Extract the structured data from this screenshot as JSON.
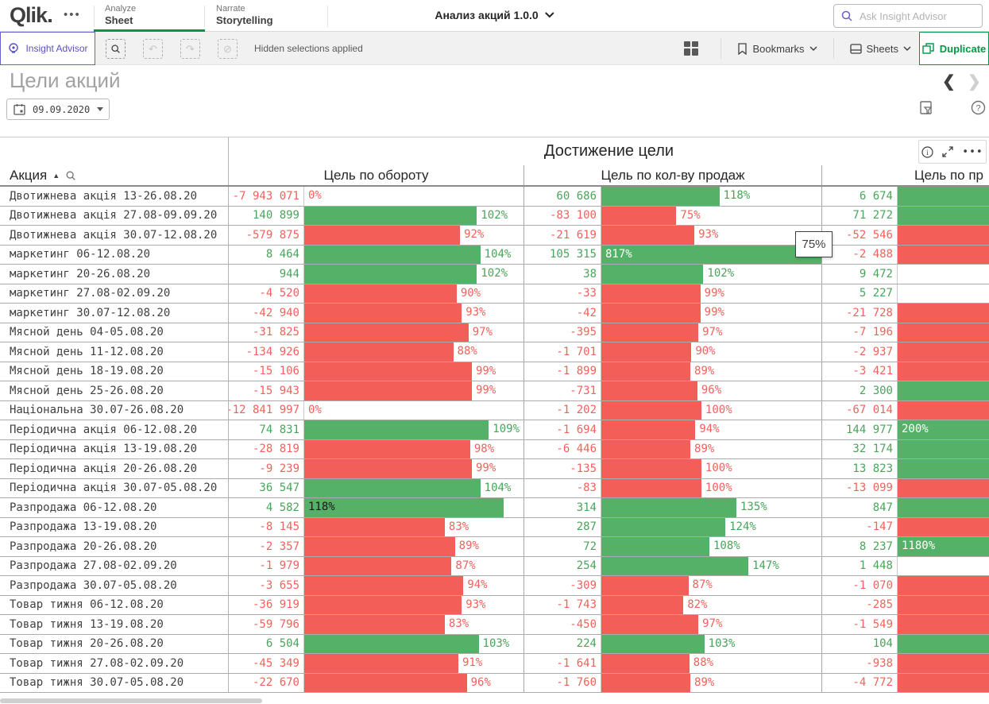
{
  "topbar": {
    "logo": "Qlik",
    "tabs": [
      {
        "top": "Analyze",
        "label": "Sheet"
      },
      {
        "top": "Narrate",
        "label": "Storytelling"
      }
    ],
    "app_title": "Анализ акций 1.0.0",
    "search_placeholder": "Ask Insight Advisor"
  },
  "toolbar": {
    "insight_advisor": "Insight Advisor",
    "hidden_selections": "Hidden selections applied",
    "bookmarks": "Bookmarks",
    "sheets": "Sheets",
    "duplicate": "Duplicate"
  },
  "sheet": {
    "title": "Цели акций",
    "date_value": "09.09.2020"
  },
  "table": {
    "group_header": "Достижение цели",
    "dim_header": "Акция",
    "col1_header": "Цель по обороту",
    "col2_header": "Цель по кол-ву продаж",
    "col3_header_visible": "Цель по пр",
    "tooltip": "75%",
    "colors": {
      "bar_green": "#55b167",
      "bar_red": "#f35f58",
      "text_green": "#4aa45a",
      "text_red": "#f2625c"
    },
    "scales": {
      "c1_max": 129.5,
      "c2_max": 220
    },
    "rows": [
      {
        "name": "Двотижнева акція 13-26.08.20",
        "c1": {
          "v": "-7 943 071",
          "pct": 0
        },
        "c2": {
          "v": "60 686",
          "pct": 118
        },
        "c3": {
          "v": "6 674",
          "bar": true,
          "label": ""
        }
      },
      {
        "name": "Двотижнева акція 27.08-09.09.20",
        "c1": {
          "v": "140 899",
          "pct": 102
        },
        "c2": {
          "v": "-83 100",
          "pct": 75
        },
        "c3": {
          "v": "71 272",
          "bar": true,
          "label": ""
        }
      },
      {
        "name": "Двотижнева акція 30.07-12.08.20",
        "c1": {
          "v": "-579 875",
          "pct": 92
        },
        "c2": {
          "v": "-21 619",
          "pct": 93
        },
        "c3": {
          "v": "-52 546",
          "bar": true,
          "label": ""
        }
      },
      {
        "name": "маркетинг 06-12.08.20",
        "c1": {
          "v": "8 464",
          "pct": 104
        },
        "c2": {
          "v": "105 315",
          "pct": 817
        },
        "c3": {
          "v": "-2 488",
          "bar": true,
          "label": ""
        }
      },
      {
        "name": "маркетинг 20-26.08.20",
        "c1": {
          "v": "944",
          "pct": 102
        },
        "c2": {
          "v": "38",
          "pct": 102
        },
        "c3": {
          "v": "9 472",
          "bar": false,
          "label": ""
        }
      },
      {
        "name": "маркетинг 27.08-02.09.20",
        "c1": {
          "v": "-4 520",
          "pct": 90
        },
        "c2": {
          "v": "-33",
          "pct": 99
        },
        "c3": {
          "v": "5 227",
          "bar": false,
          "label": ""
        }
      },
      {
        "name": "маркетинг 30.07-12.08.20",
        "c1": {
          "v": "-42 940",
          "pct": 93
        },
        "c2": {
          "v": "-42",
          "pct": 99
        },
        "c3": {
          "v": "-21 728",
          "bar": true,
          "label": ""
        }
      },
      {
        "name": "Мясной день 04-05.08.20",
        "c1": {
          "v": "-31 825",
          "pct": 97
        },
        "c2": {
          "v": "-395",
          "pct": 97
        },
        "c3": {
          "v": "-7 196",
          "bar": true,
          "label": ""
        }
      },
      {
        "name": "Мясной день 11-12.08.20",
        "c1": {
          "v": "-134 926",
          "pct": 88
        },
        "c2": {
          "v": "-1 701",
          "pct": 90
        },
        "c3": {
          "v": "-2 937",
          "bar": true,
          "label": ""
        }
      },
      {
        "name": "Мясной день 18-19.08.20",
        "c1": {
          "v": "-15 106",
          "pct": 99
        },
        "c2": {
          "v": "-1 899",
          "pct": 89
        },
        "c3": {
          "v": "-3 421",
          "bar": true,
          "label": ""
        }
      },
      {
        "name": "Мясной день 25-26.08.20",
        "c1": {
          "v": "-15 943",
          "pct": 99
        },
        "c2": {
          "v": "-731",
          "pct": 96
        },
        "c3": {
          "v": "2 300",
          "bar": true,
          "label": ""
        }
      },
      {
        "name": "Національна 30.07-26.08.20",
        "c1": {
          "v": "-12 841 997",
          "pct": 0
        },
        "c2": {
          "v": "-1 202",
          "pct": 100
        },
        "c3": {
          "v": "-67 014",
          "bar": true,
          "label": ""
        }
      },
      {
        "name": "Періодична акція 06-12.08.20",
        "c1": {
          "v": "74 831",
          "pct": 109
        },
        "c2": {
          "v": "-1 694",
          "pct": 94
        },
        "c3": {
          "v": "144 977",
          "bar": true,
          "label": "200%"
        }
      },
      {
        "name": "Періодична акція 13-19.08.20",
        "c1": {
          "v": "-28 819",
          "pct": 98
        },
        "c2": {
          "v": "-6 446",
          "pct": 89
        },
        "c3": {
          "v": "32 174",
          "bar": true,
          "label": ""
        }
      },
      {
        "name": "Періодична акція 20-26.08.20",
        "c1": {
          "v": "-9 239",
          "pct": 99
        },
        "c2": {
          "v": "-135",
          "pct": 100
        },
        "c3": {
          "v": "13 823",
          "bar": true,
          "label": ""
        }
      },
      {
        "name": "Періодична акція 30.07-05.08.20",
        "c1": {
          "v": "36 547",
          "pct": 104
        },
        "c2": {
          "v": "-83",
          "pct": 100
        },
        "c3": {
          "v": "-13 099",
          "bar": true,
          "label": ""
        }
      },
      {
        "name": "Разпродажа 06-12.08.20",
        "c1": {
          "v": "4 582",
          "pct": 118
        },
        "c2": {
          "v": "314",
          "pct": 135
        },
        "c3": {
          "v": "847",
          "bar": true,
          "label": ""
        }
      },
      {
        "name": "Разпродажа 13-19.08.20",
        "c1": {
          "v": "-8 145",
          "pct": 83
        },
        "c2": {
          "v": "287",
          "pct": 124
        },
        "c3": {
          "v": "-147",
          "bar": true,
          "label": ""
        }
      },
      {
        "name": "Разпродажа 20-26.08.20",
        "c1": {
          "v": "-2 357",
          "pct": 89
        },
        "c2": {
          "v": "72",
          "pct": 108
        },
        "c3": {
          "v": "8 237",
          "bar": true,
          "label": "1180%"
        }
      },
      {
        "name": "Разпродажа 27.08-02.09.20",
        "c1": {
          "v": "-1 979",
          "pct": 87
        },
        "c2": {
          "v": "254",
          "pct": 147
        },
        "c3": {
          "v": "1 448",
          "bar": false,
          "label": ""
        }
      },
      {
        "name": "Разпродажа 30.07-05.08.20",
        "c1": {
          "v": "-3 655",
          "pct": 94
        },
        "c2": {
          "v": "-309",
          "pct": 87
        },
        "c3": {
          "v": "-1 070",
          "bar": true,
          "label": ""
        }
      },
      {
        "name": "Товар тижня 06-12.08.20",
        "c1": {
          "v": "-36 919",
          "pct": 93
        },
        "c2": {
          "v": "-1 743",
          "pct": 82
        },
        "c3": {
          "v": "-285",
          "bar": true,
          "label": ""
        }
      },
      {
        "name": "Товар тижня 13-19.08.20",
        "c1": {
          "v": "-59 796",
          "pct": 83
        },
        "c2": {
          "v": "-450",
          "pct": 97
        },
        "c3": {
          "v": "-1 549",
          "bar": true,
          "label": ""
        }
      },
      {
        "name": "Товар тижня 20-26.08.20",
        "c1": {
          "v": "6 504",
          "pct": 103
        },
        "c2": {
          "v": "224",
          "pct": 103
        },
        "c3": {
          "v": "104",
          "bar": true,
          "label": ""
        }
      },
      {
        "name": "Товар тижня 27.08-02.09.20",
        "c1": {
          "v": "-45 349",
          "pct": 91
        },
        "c2": {
          "v": "-1 641",
          "pct": 88
        },
        "c3": {
          "v": "-938",
          "bar": true,
          "label": ""
        }
      },
      {
        "name": "Товар тижня 30.07-05.08.20",
        "c1": {
          "v": "-22 670",
          "pct": 96
        },
        "c2": {
          "v": "-1 760",
          "pct": 89
        },
        "c3": {
          "v": "-4 772",
          "bar": true,
          "label": ""
        }
      }
    ]
  }
}
